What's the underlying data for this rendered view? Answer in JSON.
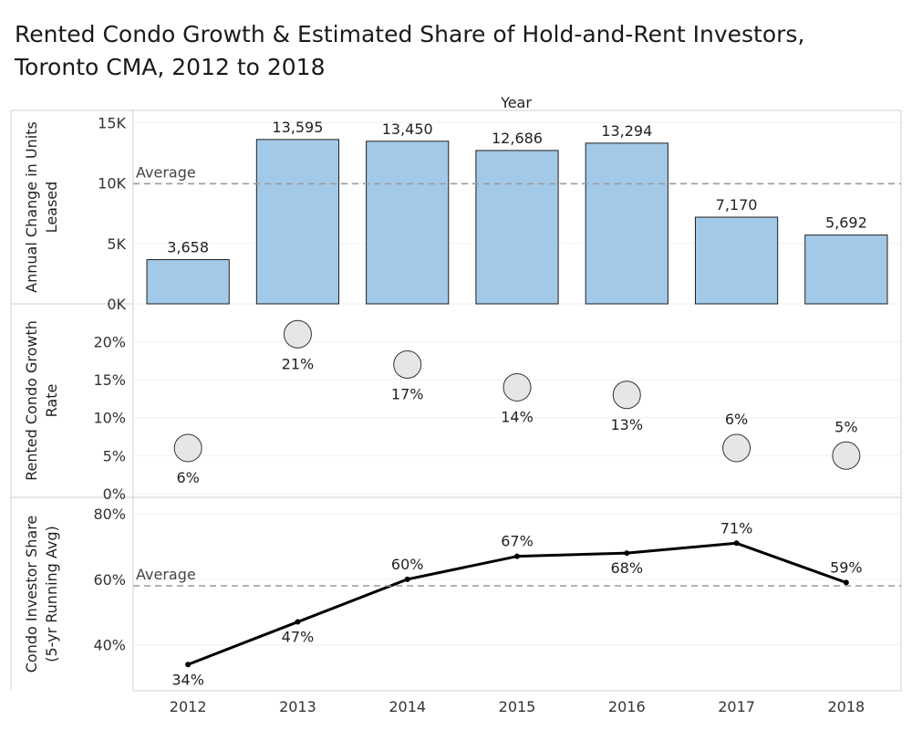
{
  "title": "Rented Condo Growth & Estimated Share of Hold-and-Rent Investors, Toronto CMA, 2012 to 2018",
  "column_header": "Year",
  "average_label": "Average",
  "chart_data": [
    {
      "type": "bar",
      "ylabel": "Annual Change in Units Leased",
      "categories": [
        "2012",
        "2013",
        "2014",
        "2015",
        "2016",
        "2017",
        "2018"
      ],
      "values": [
        3658,
        13595,
        13450,
        12686,
        13294,
        7170,
        5692
      ],
      "value_labels": [
        "3,658",
        "13,595",
        "13,450",
        "12,686",
        "13,294",
        "7,170",
        "5,692"
      ],
      "ylim": [
        0,
        16000
      ],
      "yticks": [
        0,
        5000,
        10000,
        15000
      ],
      "ytick_labels": [
        "0K",
        "5K",
        "10K",
        "15K"
      ],
      "average": 9935,
      "colors": {
        "bar": "#a3c9e8",
        "bar_stroke": "#1f1f1f"
      }
    },
    {
      "type": "scatter",
      "ylabel": "Rented Condo Growth Rate",
      "categories": [
        "2012",
        "2013",
        "2014",
        "2015",
        "2016",
        "2017",
        "2018"
      ],
      "values": [
        6,
        21,
        17,
        14,
        13,
        6,
        5
      ],
      "value_labels": [
        "6%",
        "21%",
        "17%",
        "14%",
        "13%",
        "6%",
        "5%"
      ],
      "label_positions": [
        "below",
        "below",
        "below",
        "below",
        "below",
        "above",
        "above"
      ],
      "ylim": [
        -0.5,
        25
      ],
      "yticks": [
        0,
        5,
        10,
        15,
        20
      ],
      "ytick_labels": [
        "0%",
        "5%",
        "10%",
        "15%",
        "20%"
      ],
      "colors": {
        "marker": "#e6e6e6",
        "marker_stroke": "#333333"
      }
    },
    {
      "type": "line",
      "ylabel": "Condo Investor Share (5-yr Running Avg)",
      "categories": [
        "2012",
        "2013",
        "2014",
        "2015",
        "2016",
        "2017",
        "2018"
      ],
      "values": [
        34,
        47,
        60,
        67,
        68,
        71,
        59
      ],
      "value_labels": [
        "34%",
        "47%",
        "60%",
        "67%",
        "68%",
        "71%",
        "59%"
      ],
      "label_positions": [
        "below",
        "below",
        "above",
        "above",
        "below",
        "above",
        "above"
      ],
      "ylim": [
        26,
        85
      ],
      "yticks": [
        40,
        60,
        80
      ],
      "ytick_labels": [
        "40%",
        "60%",
        "80%"
      ],
      "average": 58,
      "colors": {
        "line": "#000000"
      }
    }
  ],
  "ylabel_lines": [
    [
      "Annual Change in Units",
      "Leased"
    ],
    [
      "Rented Condo Growth",
      "Rate"
    ],
    [
      "Condo Investor Share",
      "(5-yr Running Avg)"
    ]
  ]
}
